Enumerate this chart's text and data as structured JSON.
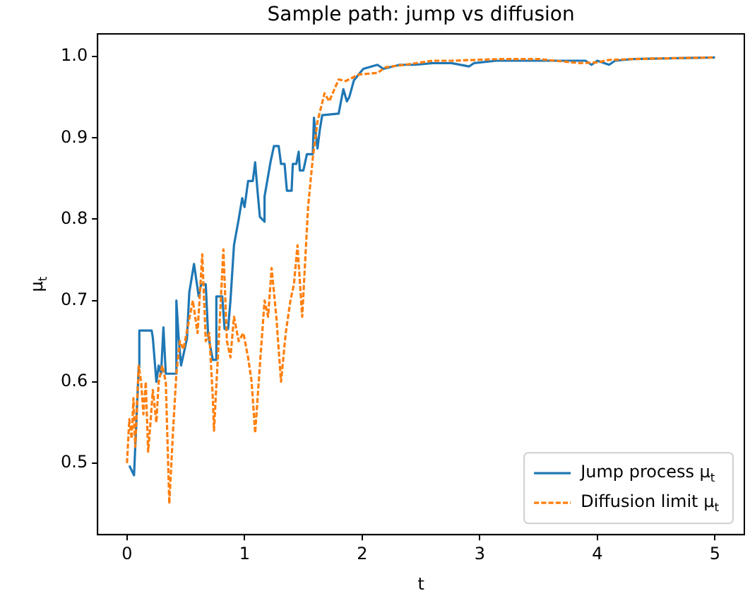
{
  "chart_data": {
    "type": "line",
    "title": "Sample path: jump vs diffusion",
    "xlabel": "t",
    "ylabel": "μ$_{t}$",
    "xlim": [
      -0.25,
      5.25
    ],
    "xticks": [
      0,
      1,
      2,
      3,
      4,
      5
    ],
    "ylim": [
      0.412,
      1.028
    ],
    "yticks": [
      0.5,
      0.6,
      0.7,
      0.8,
      0.9,
      {
        "value": 1,
        "label": "1.0"
      }
    ],
    "grid": false,
    "legend": "bottom right",
    "marker": "none",
    "series": [
      {
        "name": "Jump process μ$_{t}$",
        "color": "#1f77b4",
        "line_style": "solid",
        "x": [
          0.02,
          0.06,
          0.1,
          0.105,
          0.21,
          0.22,
          0.25,
          0.27,
          0.29,
          0.31,
          0.33,
          0.41,
          0.42,
          0.44,
          0.46,
          0.51,
          0.53,
          0.57,
          0.61,
          0.63,
          0.67,
          0.69,
          0.73,
          0.76,
          0.76,
          0.81,
          0.83,
          0.86,
          0.88,
          0.91,
          0.95,
          0.98,
          1.0,
          1.03,
          1.07,
          1.09,
          1.11,
          1.13,
          1.17,
          1.17,
          1.22,
          1.25,
          1.29,
          1.31,
          1.34,
          1.36,
          1.4,
          1.41,
          1.44,
          1.46,
          1.47,
          1.5,
          1.53,
          1.58,
          1.59,
          1.62,
          1.64,
          1.66,
          1.8,
          1.84,
          1.87,
          1.89,
          1.93,
          2.01,
          2.13,
          2.18,
          2.32,
          2.45,
          2.6,
          2.76,
          2.91,
          2.95,
          3.14,
          3.5,
          3.9,
          3.95,
          4.0,
          4.1,
          4.15,
          4.3,
          4.6,
          5.0
        ],
        "values": [
          0.497,
          0.485,
          0.618,
          0.663,
          0.663,
          0.654,
          0.6,
          0.62,
          0.61,
          0.667,
          0.61,
          0.61,
          0.7,
          0.653,
          0.62,
          0.653,
          0.71,
          0.745,
          0.705,
          0.72,
          0.72,
          0.658,
          0.627,
          0.627,
          0.705,
          0.705,
          0.665,
          0.665,
          0.7,
          0.768,
          0.8,
          0.826,
          0.815,
          0.847,
          0.847,
          0.87,
          0.835,
          0.803,
          0.797,
          0.828,
          0.87,
          0.89,
          0.89,
          0.868,
          0.868,
          0.835,
          0.835,
          0.868,
          0.868,
          0.883,
          0.86,
          0.86,
          0.88,
          0.88,
          0.925,
          0.887,
          0.91,
          0.928,
          0.93,
          0.96,
          0.945,
          0.95,
          0.971,
          0.985,
          0.99,
          0.985,
          0.99,
          0.99,
          0.992,
          0.992,
          0.988,
          0.992,
          0.995,
          0.995,
          0.995,
          0.99,
          0.995,
          0.99,
          0.995,
          0.997,
          0.998,
          0.999
        ]
      },
      {
        "name": "Diffusion limit μ$_{t}$",
        "color": "#ff7f0e",
        "line_style": "dashed",
        "x": [
          0.0,
          0.02,
          0.04,
          0.055,
          0.07,
          0.1,
          0.12,
          0.14,
          0.16,
          0.18,
          0.2,
          0.22,
          0.25,
          0.27,
          0.3,
          0.33,
          0.36,
          0.39,
          0.42,
          0.45,
          0.48,
          0.52,
          0.56,
          0.6,
          0.64,
          0.67,
          0.7,
          0.73,
          0.74,
          0.78,
          0.82,
          0.85,
          0.88,
          0.91,
          0.95,
          0.99,
          1.03,
          1.06,
          1.09,
          1.13,
          1.17,
          1.2,
          1.23,
          1.27,
          1.31,
          1.35,
          1.39,
          1.42,
          1.45,
          1.49,
          1.54,
          1.58,
          1.62,
          1.68,
          1.72,
          1.8,
          1.86,
          1.97,
          2.13,
          2.2,
          2.36,
          2.6,
          2.76,
          3.16,
          3.5,
          3.85,
          4.0,
          4.1,
          4.3,
          4.6,
          5.0
        ],
        "values": [
          0.5,
          0.554,
          0.53,
          0.58,
          0.52,
          0.62,
          0.6,
          0.56,
          0.6,
          0.514,
          0.55,
          0.59,
          0.55,
          0.6,
          0.62,
          0.6,
          0.45,
          0.535,
          0.61,
          0.65,
          0.64,
          0.67,
          0.7,
          0.66,
          0.757,
          0.65,
          0.66,
          0.58,
          0.54,
          0.65,
          0.763,
          0.65,
          0.63,
          0.68,
          0.65,
          0.66,
          0.63,
          0.6,
          0.537,
          0.62,
          0.7,
          0.68,
          0.74,
          0.68,
          0.6,
          0.66,
          0.7,
          0.72,
          0.768,
          0.68,
          0.815,
          0.875,
          0.92,
          0.955,
          0.945,
          0.972,
          0.97,
          0.978,
          0.98,
          0.987,
          0.99,
          0.995,
          0.995,
          0.997,
          0.997,
          0.992,
          0.993,
          0.996,
          0.997,
          0.998,
          0.999
        ]
      }
    ]
  }
}
